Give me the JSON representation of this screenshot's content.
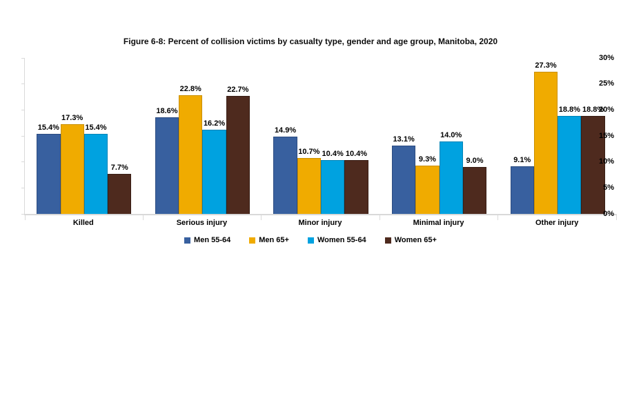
{
  "title": "Figure 6-8: Percent of collision victims by casualty type, gender and age group, Manitoba, 2020",
  "chart_data": {
    "type": "bar",
    "title": "Figure 6-8: Percent of collision victims by casualty type, gender and age group, Manitoba, 2020",
    "categories": [
      "Killed",
      "Serious injury",
      "Minor injury",
      "Minimal injury",
      "Other injury"
    ],
    "series": [
      {
        "name": "Men 55-64",
        "color": "#38609F",
        "border_color": "#2B4B80",
        "values": [
          15.4,
          18.6,
          14.9,
          13.1,
          9.1
        ]
      },
      {
        "name": "Men 65+",
        "color": "#F0AB00",
        "border_color": "#C98F00",
        "values": [
          17.3,
          22.8,
          10.7,
          9.3,
          27.3
        ]
      },
      {
        "name": "Women 55-64",
        "color": "#00A2E0",
        "border_color": "#0083B6",
        "values": [
          15.4,
          16.2,
          10.4,
          14.0,
          18.8
        ]
      },
      {
        "name": "Women 65+",
        "color": "#4E2A1E",
        "border_color": "#381E15",
        "values": [
          7.7,
          22.7,
          10.4,
          9.0,
          18.8
        ]
      }
    ],
    "xlabel": "",
    "ylabel": "",
    "ylim": [
      0,
      30
    ],
    "yticks": [
      "0%",
      "5%",
      "10%",
      "15%",
      "20%",
      "25%",
      "30%"
    ],
    "value_suffix": "%",
    "value_decimals": 1,
    "grid": false,
    "legend_position": "bottom",
    "axis_color": "#D9D9D9",
    "text_color": "#000000",
    "background_color": "#FFFFFF"
  }
}
